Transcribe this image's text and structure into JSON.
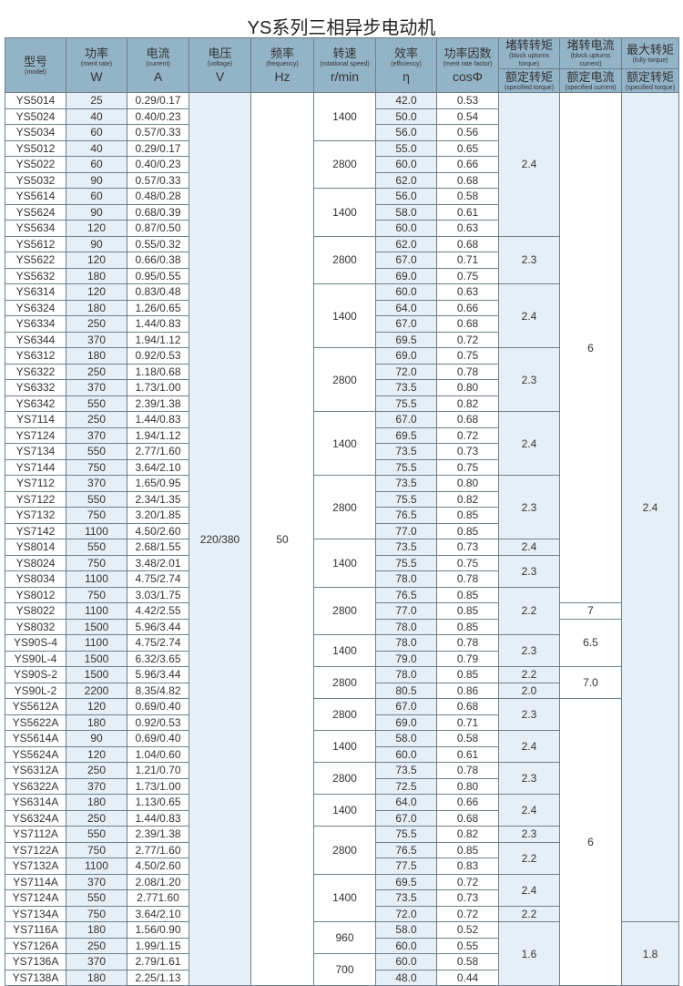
{
  "title": "YS系列三相异步电动机",
  "headers": {
    "model": {
      "zh": "型号",
      "en": "(model)"
    },
    "power": {
      "zh": "功率",
      "en": "(merit rate)",
      "unit": "W"
    },
    "current": {
      "zh": "电流",
      "en": "(current)",
      "unit": "A"
    },
    "voltage": {
      "zh": "电压",
      "en": "(voltage)",
      "unit": "V"
    },
    "frequency": {
      "zh": "频率",
      "en": "(frequency)",
      "unit": "Hz"
    },
    "speed": {
      "zh": "转速",
      "en": "(rotational speed)",
      "unit": "r/min"
    },
    "efficiency": {
      "zh": "效率",
      "en": "(efficiency)",
      "unit": "η"
    },
    "power_factor": {
      "zh": "功率因数",
      "en": "(merit rate factor)",
      "unit": "cosΦ"
    },
    "locked_torque": {
      "zh": "堵转转矩",
      "en": "(block upturns torque)",
      "sub_zh": "额定转矩",
      "sub_en": "(specified torque)"
    },
    "locked_current": {
      "zh": "堵转电流",
      "en": "(block upturns current)",
      "sub_zh": "额定电流",
      "sub_en": "(specified current)"
    },
    "max_torque": {
      "zh": "最大转矩",
      "en": "(fully torque)",
      "sub_zh": "额定转矩",
      "sub_en": "(specified torque)"
    }
  },
  "rows": [
    [
      "YS5014",
      "25",
      "0.29/0.17",
      "42.0",
      "0.53"
    ],
    [
      "YS5024",
      "40",
      "0.40/0.23",
      "50.0",
      "0.54"
    ],
    [
      "YS5034",
      "60",
      "0.57/0.33",
      "56.0",
      "0.56"
    ],
    [
      "YS5012",
      "40",
      "0.29/0.17",
      "55.0",
      "0.65"
    ],
    [
      "YS5022",
      "60",
      "0.40/0.23",
      "60.0",
      "0.66"
    ],
    [
      "YS5032",
      "90",
      "0.57/0.33",
      "62.0",
      "0.68"
    ],
    [
      "YS5614",
      "60",
      "0.48/0.28",
      "56.0",
      "0.58"
    ],
    [
      "YS5624",
      "90",
      "0.68/0.39",
      "58.0",
      "0.61"
    ],
    [
      "YS5634",
      "120",
      "0.87/0.50",
      "60.0",
      "0.63"
    ],
    [
      "YS5612",
      "90",
      "0.55/0.32",
      "62.0",
      "0.68"
    ],
    [
      "YS5622",
      "120",
      "0.66/0.38",
      "67.0",
      "0.71"
    ],
    [
      "YS5632",
      "180",
      "0.95/0.55",
      "69.0",
      "0.75"
    ],
    [
      "YS6314",
      "120",
      "0.83/0.48",
      "60.0",
      "0.63"
    ],
    [
      "YS6324",
      "180",
      "1.26/0.65",
      "64.0",
      "0.66"
    ],
    [
      "YS6334",
      "250",
      "1.44/0.83",
      "67.0",
      "0.68"
    ],
    [
      "YS6344",
      "370",
      "1.94/1.12",
      "69.5",
      "0.72"
    ],
    [
      "YS6312",
      "180",
      "0.92/0.53",
      "69.0",
      "0.75"
    ],
    [
      "YS6322",
      "250",
      "1.18/0.68",
      "72.0",
      "0.78"
    ],
    [
      "YS6332",
      "370",
      "1.73/1.00",
      "73.5",
      "0.80"
    ],
    [
      "YS6342",
      "550",
      "2.39/1.38",
      "75.5",
      "0.82"
    ],
    [
      "YS7114",
      "250",
      "1.44/0.83",
      "67.0",
      "0.68"
    ],
    [
      "YS7124",
      "370",
      "1.94/1.12",
      "69.5",
      "0.72"
    ],
    [
      "YS7134",
      "550",
      "2.77/1.60",
      "73.5",
      "0.73"
    ],
    [
      "YS7144",
      "750",
      "3.64/2.10",
      "75.5",
      "0.75"
    ],
    [
      "YS7112",
      "370",
      "1.65/0.95",
      "73.5",
      "0.80"
    ],
    [
      "YS7122",
      "550",
      "2.34/1.35",
      "75.5",
      "0.82"
    ],
    [
      "YS7132",
      "750",
      "3.20/1.85",
      "76.5",
      "0.85"
    ],
    [
      "YS7142",
      "1100",
      "4.50/2.60",
      "77.0",
      "0.85"
    ],
    [
      "YS8014",
      "550",
      "2.68/1.55",
      "73.5",
      "0.73"
    ],
    [
      "YS8024",
      "750",
      "3.48/2.01",
      "75.5",
      "0.75"
    ],
    [
      "YS8034",
      "1100",
      "4.75/2.74",
      "78.0",
      "0.78"
    ],
    [
      "YS8012",
      "750",
      "3.03/1.75",
      "76.5",
      "0.85"
    ],
    [
      "YS8022",
      "1100",
      "4.42/2.55",
      "77.0",
      "0.85"
    ],
    [
      "YS8032",
      "1500",
      "5.96/3.44",
      "78.0",
      "0.85"
    ],
    [
      "YS90S-4",
      "1100",
      "4.75/2.74",
      "78.0",
      "0.78"
    ],
    [
      "YS90L-4",
      "1500",
      "6.32/3.65",
      "79.0",
      "0.79"
    ],
    [
      "YS90S-2",
      "1500",
      "5.96/3.44",
      "78.0",
      "0.85"
    ],
    [
      "YS90L-2",
      "2200",
      "8.35/4.82",
      "80.5",
      "0.86"
    ],
    [
      "YS5612A",
      "120",
      "0.69/0.40",
      "67.0",
      "0.68"
    ],
    [
      "YS5622A",
      "180",
      "0.92/0.53",
      "69.0",
      "0.71"
    ],
    [
      "YS5614A",
      "90",
      "0.69/0.40",
      "58.0",
      "0.58"
    ],
    [
      "YS5624A",
      "120",
      "1.04/0.60",
      "60.0",
      "0.61"
    ],
    [
      "YS6312A",
      "250",
      "1.21/0.70",
      "73.5",
      "0.78"
    ],
    [
      "YS6322A",
      "370",
      "1.73/1.00",
      "72.5",
      "0.80"
    ],
    [
      "YS6314A",
      "180",
      "1.13/0.65",
      "64.0",
      "0.66"
    ],
    [
      "YS6324A",
      "250",
      "1.44/0.83",
      "67.0",
      "0.68"
    ],
    [
      "YS7112A",
      "550",
      "2.39/1.38",
      "75.5",
      "0.82"
    ],
    [
      "YS7122A",
      "750",
      "2.77/1.60",
      "76.5",
      "0.85"
    ],
    [
      "YS7132A",
      "1100",
      "4.50/2.60",
      "77.5",
      "0.83"
    ],
    [
      "YS7114A",
      "370",
      "2.08/1.20",
      "69.5",
      "0.72"
    ],
    [
      "YS7124A",
      "550",
      "2.771.60",
      "73.5",
      "0.73"
    ],
    [
      "YS7134A",
      "750",
      "3.64/2.10",
      "72.0",
      "0.72"
    ],
    [
      "YS7116A",
      "180",
      "1.56/0.90",
      "58.0",
      "0.52"
    ],
    [
      "YS7126A",
      "250",
      "1.99/1.15",
      "60.0",
      "0.55"
    ],
    [
      "YS7136A",
      "370",
      "2.79/1.61",
      "60.0",
      "0.58"
    ],
    [
      "YS7138A",
      "180",
      "2.25/1.13",
      "48.0",
      "0.44"
    ]
  ],
  "voltage": [
    [
      "220/380",
      56
    ]
  ],
  "frequency": [
    [
      "50",
      56
    ]
  ],
  "speed": [
    [
      "1400",
      3
    ],
    [
      "2800",
      3
    ],
    [
      "1400",
      3
    ],
    [
      "2800",
      3
    ],
    [
      "1400",
      4
    ],
    [
      "2800",
      4
    ],
    [
      "1400",
      4
    ],
    [
      "2800",
      4
    ],
    [
      "1400",
      3
    ],
    [
      "2800",
      3
    ],
    [
      "1400",
      2
    ],
    [
      "2800",
      2
    ],
    [
      "2800",
      2
    ],
    [
      "1400",
      2
    ],
    [
      "2800",
      2
    ],
    [
      "1400",
      2
    ],
    [
      "2800",
      3
    ],
    [
      "1400",
      3
    ],
    [
      "960",
      2
    ],
    [
      "700",
      2
    ]
  ],
  "locked_torque": [
    [
      "2.4",
      9
    ],
    [
      "2.3",
      3
    ],
    [
      "2.4",
      4
    ],
    [
      "2.3",
      4
    ],
    [
      "2.4",
      4
    ],
    [
      "2.3",
      4
    ],
    [
      "2.4",
      1
    ],
    [
      "2.3",
      2
    ],
    [
      "2.2",
      3
    ],
    [
      "2.3",
      2
    ],
    [
      "2.2",
      1
    ],
    [
      "2.0",
      1
    ],
    [
      "2.3",
      2
    ],
    [
      "2.4",
      2
    ],
    [
      "2.3",
      2
    ],
    [
      "2.4",
      2
    ],
    [
      "2.3",
      1
    ],
    [
      "2.2",
      2
    ],
    [
      "2.4",
      2
    ],
    [
      "2.2",
      1
    ],
    [
      "1.6",
      4
    ]
  ],
  "locked_current": [
    [
      "6",
      32
    ],
    [
      "7",
      1
    ],
    [
      "6.5",
      3
    ],
    [
      "7.0",
      2
    ],
    [
      "6",
      18
    ]
  ],
  "max_torque": [
    [
      "2.4",
      52
    ],
    [
      "1.8",
      4
    ]
  ]
}
